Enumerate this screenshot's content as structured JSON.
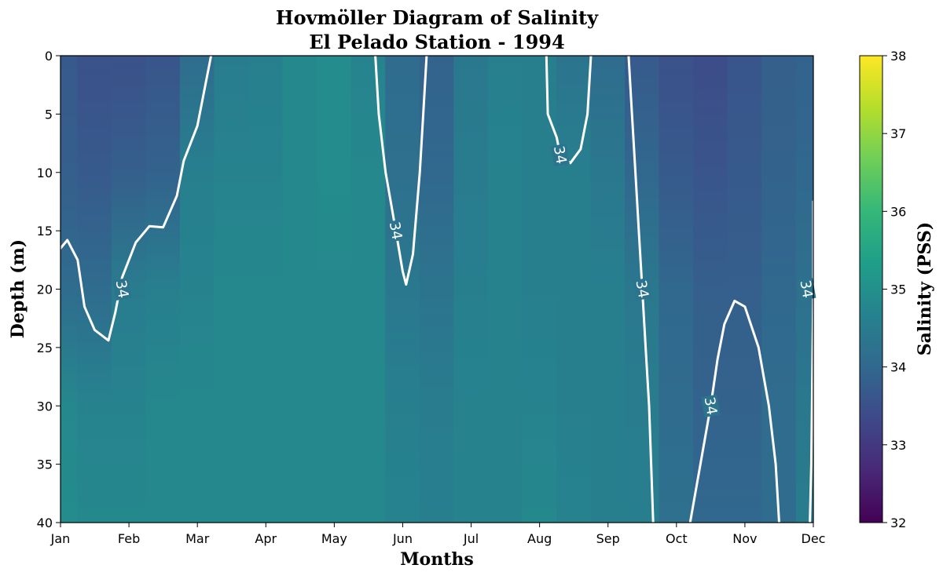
{
  "chart_data": {
    "type": "heatmap",
    "title": "Hovmöller Diagram of Salinity",
    "subtitle": "El Pelado Station - 1994",
    "xlabel": "Months",
    "ylabel": "Depth (m)",
    "x_ticks": [
      "Jan",
      "Feb",
      "Mar",
      "Apr",
      "May",
      "Jun",
      "Jul",
      "Aug",
      "Sep",
      "Oct",
      "Nov",
      "Dec"
    ],
    "y_ticks": [
      "0",
      "5",
      "10",
      "15",
      "20",
      "25",
      "30",
      "35",
      "40"
    ],
    "ylim": [
      40,
      0
    ],
    "colorbar": {
      "label": "Salinity (PSS)",
      "range": [
        32,
        38
      ],
      "ticks": [
        "32",
        "33",
        "34",
        "35",
        "36",
        "37",
        "38"
      ],
      "colormap": [
        "#440154",
        "#482878",
        "#3e4989",
        "#31688e",
        "#26828e",
        "#1f9e89",
        "#35b779",
        "#6ece58",
        "#b5de2b",
        "#fde725"
      ]
    },
    "contour_level": 34,
    "contour_color": "#ffffff",
    "contour_labels": [
      {
        "text": "34",
        "month": 0.9,
        "depth": 20.0
      },
      {
        "text": "34",
        "month": 4.9,
        "depth": 15.0
      },
      {
        "text": "34",
        "month": 7.3,
        "depth": 8.5
      },
      {
        "text": "34",
        "month": 8.5,
        "depth": 20.0
      },
      {
        "text": "34",
        "month": 9.5,
        "depth": 30.0
      },
      {
        "text": "34",
        "month": 10.9,
        "depth": 20.0
      }
    ],
    "monthly_salinity": {
      "depths": [
        0,
        10,
        20,
        30,
        40
      ],
      "months": [
        0,
        0.5,
        1,
        1.5,
        2,
        2.5,
        3,
        3.5,
        4,
        4.5,
        5,
        5.5,
        6,
        6.5,
        7,
        7.5,
        8,
        8.5,
        9,
        9.5,
        10,
        10.5,
        11
      ],
      "columns": [
        [
          33.7,
          33.8,
          34.1,
          34.8,
          34.9
        ],
        [
          33.5,
          33.7,
          34.1,
          34.7,
          34.8
        ],
        [
          33.5,
          33.8,
          34.5,
          34.7,
          34.8
        ],
        [
          33.6,
          33.9,
          34.6,
          34.8,
          34.8
        ],
        [
          34.1,
          34.6,
          34.7,
          34.8,
          34.8
        ],
        [
          34.5,
          34.7,
          34.8,
          34.8,
          34.8
        ],
        [
          34.6,
          34.7,
          34.8,
          34.8,
          34.8
        ],
        [
          34.8,
          34.8,
          34.8,
          34.8,
          34.8
        ],
        [
          34.9,
          34.9,
          34.8,
          34.8,
          34.8
        ],
        [
          34.7,
          34.8,
          34.8,
          34.8,
          34.8
        ],
        [
          34.1,
          34.2,
          34.4,
          34.6,
          34.7
        ],
        [
          33.9,
          34.0,
          34.3,
          34.5,
          34.6
        ],
        [
          34.4,
          34.5,
          34.6,
          34.7,
          34.7
        ],
        [
          34.6,
          34.7,
          34.7,
          34.7,
          34.7
        ],
        [
          34.6,
          34.6,
          34.6,
          34.7,
          34.8
        ],
        [
          34.3,
          34.6,
          34.6,
          34.6,
          34.7
        ],
        [
          34.1,
          34.4,
          34.6,
          34.6,
          34.6
        ],
        [
          33.7,
          34.0,
          34.4,
          34.5,
          34.6
        ],
        [
          33.5,
          33.7,
          34.0,
          34.1,
          34.2
        ],
        [
          33.4,
          33.6,
          33.8,
          33.9,
          34.0
        ],
        [
          33.6,
          33.7,
          33.8,
          33.9,
          34.0
        ],
        [
          33.8,
          33.9,
          34.0,
          34.1,
          34.1
        ],
        [
          33.9,
          34.0,
          34.2,
          34.4,
          34.5
        ]
      ]
    },
    "contour_lines": [
      [
        [
          0,
          16.5
        ],
        [
          0.1,
          15.8
        ],
        [
          0.25,
          17.5
        ],
        [
          0.35,
          21.5
        ],
        [
          0.5,
          23.5
        ],
        [
          0.7,
          24.4
        ],
        [
          0.8,
          22
        ],
        [
          0.9,
          19
        ],
        [
          1.1,
          16
        ],
        [
          1.3,
          14.6
        ],
        [
          1.5,
          14.7
        ],
        [
          1.7,
          12
        ],
        [
          1.8,
          9
        ],
        [
          2.0,
          6
        ],
        [
          2.1,
          3
        ],
        [
          2.2,
          0
        ]
      ],
      [
        [
          4.6,
          0
        ],
        [
          4.65,
          5
        ],
        [
          4.75,
          10
        ],
        [
          4.9,
          15
        ],
        [
          5.0,
          18.5
        ],
        [
          5.05,
          19.6
        ],
        [
          5.15,
          17
        ],
        [
          5.25,
          10
        ],
        [
          5.3,
          5
        ],
        [
          5.35,
          0
        ]
      ],
      [
        [
          7.1,
          0
        ],
        [
          7.12,
          5
        ],
        [
          7.25,
          7
        ],
        [
          7.3,
          8.5
        ],
        [
          7.45,
          9.2
        ],
        [
          7.6,
          8
        ],
        [
          7.7,
          5
        ],
        [
          7.75,
          0
        ]
      ],
      [
        [
          8.3,
          0
        ],
        [
          8.35,
          5
        ],
        [
          8.4,
          10
        ],
        [
          8.45,
          15
        ],
        [
          8.5,
          20
        ],
        [
          8.55,
          25
        ],
        [
          8.6,
          30
        ],
        [
          8.63,
          35
        ],
        [
          8.66,
          40
        ]
      ],
      [
        [
          9.2,
          40
        ],
        [
          9.35,
          35
        ],
        [
          9.5,
          30
        ],
        [
          9.6,
          26
        ],
        [
          9.7,
          23
        ],
        [
          9.85,
          21
        ],
        [
          10.0,
          21.5
        ],
        [
          10.2,
          25
        ],
        [
          10.35,
          30
        ],
        [
          10.45,
          35
        ],
        [
          10.5,
          40
        ]
      ],
      [
        [
          10.95,
          40
        ],
        [
          10.97,
          35
        ],
        [
          10.98,
          30
        ],
        [
          10.99,
          25
        ],
        [
          11.0,
          20
        ],
        [
          11.0,
          15
        ],
        [
          11.0,
          12.5
        ]
      ]
    ]
  }
}
